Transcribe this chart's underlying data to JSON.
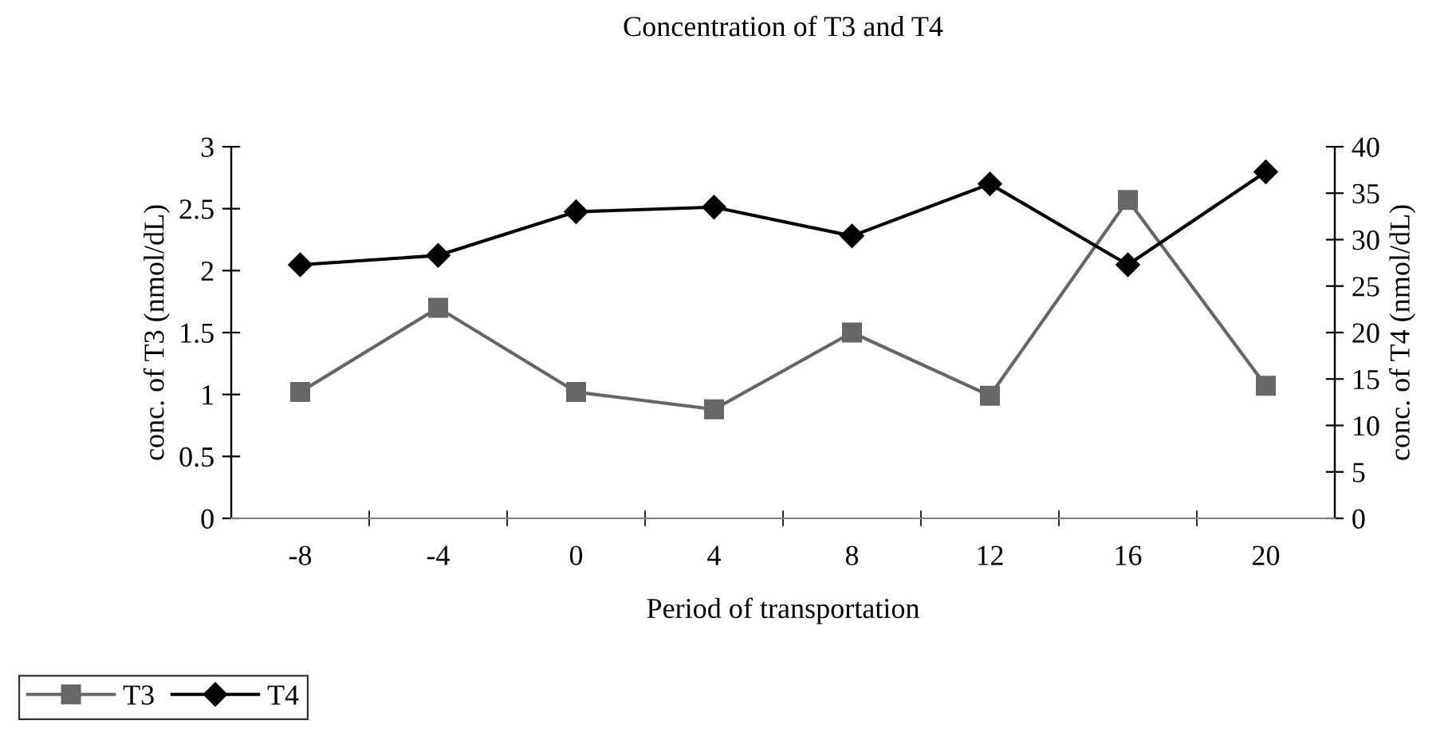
{
  "chart_data": {
    "type": "line",
    "title": "Concentration of T3 and T4",
    "xlabel": "Period of transportation",
    "ylabel": "conc. of T3 (nmol/dL)",
    "y2label": "conc. of T4 (nmol/dL)",
    "categories": [
      "-8",
      "-4",
      "0",
      "4",
      "8",
      "12",
      "16",
      "20"
    ],
    "series": [
      {
        "name": "T3",
        "color": "#666666",
        "marker": "square",
        "values": [
          1.02,
          1.7,
          1.02,
          0.88,
          1.5,
          0.99,
          2.57,
          1.07
        ]
      },
      {
        "name": "T4",
        "color": "#000000",
        "marker": "diamond",
        "axis": "y2",
        "values": [
          27.3,
          28.3,
          33.0,
          33.5,
          30.4,
          36.0,
          27.3,
          37.3
        ]
      }
    ],
    "ylim": [
      0,
      3
    ],
    "yticks": [
      0,
      0.5,
      1,
      1.5,
      2,
      2.5,
      3
    ],
    "y2lim": [
      0,
      40
    ],
    "y2ticks": [
      0,
      5,
      10,
      15,
      20,
      25,
      30,
      35,
      40
    ],
    "grid": false,
    "legend": "bottom left",
    "line_style": "solid"
  }
}
